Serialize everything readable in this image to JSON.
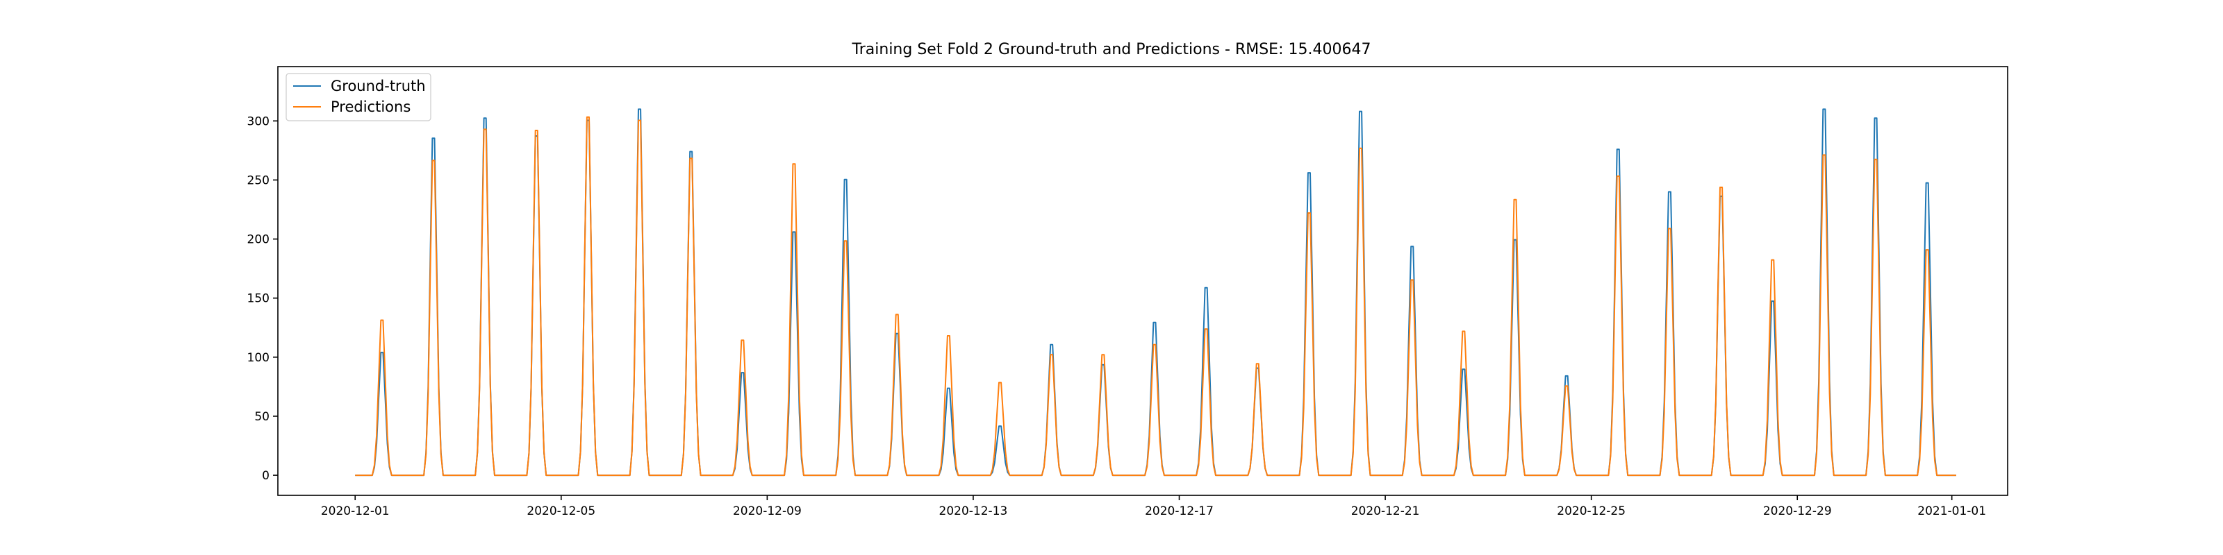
{
  "chart_data": {
    "type": "line",
    "title": "Training Set Fold 2 Ground-truth and Predictions - RMSE: 15.400647",
    "xlabel": "",
    "ylabel": "",
    "x_range": [
      "2020-11-29T12:00",
      "2021-01-02T02:00"
    ],
    "ylim": [
      -17,
      346
    ],
    "x_ticks": [
      {
        "date": "2020-12-01",
        "label": "2020-12-01"
      },
      {
        "date": "2020-12-05",
        "label": "2020-12-05"
      },
      {
        "date": "2020-12-09",
        "label": "2020-12-09"
      },
      {
        "date": "2020-12-13",
        "label": "2020-12-13"
      },
      {
        "date": "2020-12-17",
        "label": "2020-12-17"
      },
      {
        "date": "2020-12-21",
        "label": "2020-12-21"
      },
      {
        "date": "2020-12-25",
        "label": "2020-12-25"
      },
      {
        "date": "2020-12-29",
        "label": "2020-12-29"
      },
      {
        "date": "2021-01-01",
        "label": "2021-01-01"
      }
    ],
    "y_ticks": [
      0,
      50,
      100,
      150,
      200,
      250,
      300
    ],
    "grid": false,
    "legend_position": "top-left",
    "daily_peak_hour": 12.5,
    "series": [
      {
        "name": "Ground-truth",
        "color": "#1f77b4",
        "daily_peaks": [
          {
            "date": "2020-12-01",
            "peak": 110
          },
          {
            "date": "2020-12-02",
            "peak": 302
          },
          {
            "date": "2020-12-03",
            "peak": 320
          },
          {
            "date": "2020-12-04",
            "peak": 304
          },
          {
            "date": "2020-12-05",
            "peak": 318
          },
          {
            "date": "2020-12-06",
            "peak": 328
          },
          {
            "date": "2020-12-07",
            "peak": 290
          },
          {
            "date": "2020-12-08",
            "peak": 92
          },
          {
            "date": "2020-12-09",
            "peak": 218
          },
          {
            "date": "2020-12-10",
            "peak": 265
          },
          {
            "date": "2020-12-11",
            "peak": 127
          },
          {
            "date": "2020-12-12",
            "peak": 78
          },
          {
            "date": "2020-12-13",
            "peak": 44
          },
          {
            "date": "2020-12-14",
            "peak": 117
          },
          {
            "date": "2020-12-15",
            "peak": 99
          },
          {
            "date": "2020-12-16",
            "peak": 137
          },
          {
            "date": "2020-12-17",
            "peak": 168
          },
          {
            "date": "2020-12-18",
            "peak": 96
          },
          {
            "date": "2020-12-19",
            "peak": 271
          },
          {
            "date": "2020-12-20",
            "peak": 326
          },
          {
            "date": "2020-12-21",
            "peak": 205
          },
          {
            "date": "2020-12-22",
            "peak": 95
          },
          {
            "date": "2020-12-23",
            "peak": 211
          },
          {
            "date": "2020-12-24",
            "peak": 89
          },
          {
            "date": "2020-12-25",
            "peak": 292
          },
          {
            "date": "2020-12-26",
            "peak": 254
          },
          {
            "date": "2020-12-27",
            "peak": 250
          },
          {
            "date": "2020-12-28",
            "peak": 156
          },
          {
            "date": "2020-12-29",
            "peak": 328
          },
          {
            "date": "2020-12-30",
            "peak": 320
          },
          {
            "date": "2020-12-31",
            "peak": 262
          }
        ]
      },
      {
        "name": "Predictions",
        "color": "#ff7f0e",
        "daily_peaks": [
          {
            "date": "2020-12-01",
            "peak": 139
          },
          {
            "date": "2020-12-02",
            "peak": 282
          },
          {
            "date": "2020-12-03",
            "peak": 310
          },
          {
            "date": "2020-12-04",
            "peak": 309
          },
          {
            "date": "2020-12-05",
            "peak": 321
          },
          {
            "date": "2020-12-06",
            "peak": 318
          },
          {
            "date": "2020-12-07",
            "peak": 284
          },
          {
            "date": "2020-12-08",
            "peak": 121
          },
          {
            "date": "2020-12-09",
            "peak": 279
          },
          {
            "date": "2020-12-10",
            "peak": 210
          },
          {
            "date": "2020-12-11",
            "peak": 144
          },
          {
            "date": "2020-12-12",
            "peak": 125
          },
          {
            "date": "2020-12-13",
            "peak": 83
          },
          {
            "date": "2020-12-14",
            "peak": 108
          },
          {
            "date": "2020-12-15",
            "peak": 108
          },
          {
            "date": "2020-12-16",
            "peak": 117
          },
          {
            "date": "2020-12-17",
            "peak": 131
          },
          {
            "date": "2020-12-18",
            "peak": 100
          },
          {
            "date": "2020-12-19",
            "peak": 235
          },
          {
            "date": "2020-12-20",
            "peak": 293
          },
          {
            "date": "2020-12-21",
            "peak": 175
          },
          {
            "date": "2020-12-22",
            "peak": 129
          },
          {
            "date": "2020-12-23",
            "peak": 247
          },
          {
            "date": "2020-12-24",
            "peak": 80
          },
          {
            "date": "2020-12-25",
            "peak": 268
          },
          {
            "date": "2020-12-26",
            "peak": 221
          },
          {
            "date": "2020-12-27",
            "peak": 258
          },
          {
            "date": "2020-12-28",
            "peak": 193
          },
          {
            "date": "2020-12-29",
            "peak": 287
          },
          {
            "date": "2020-12-30",
            "peak": 283
          },
          {
            "date": "2020-12-31",
            "peak": 202
          }
        ]
      }
    ]
  }
}
